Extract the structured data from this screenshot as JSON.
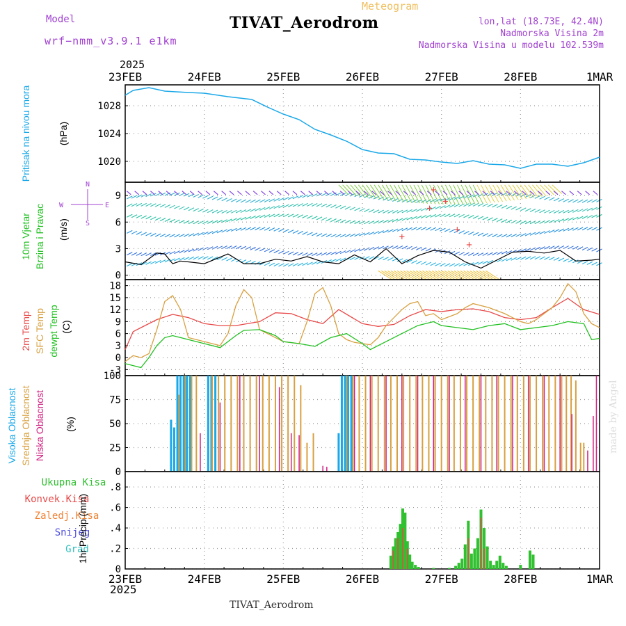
{
  "header": {
    "title": "TIVAT_Aerodrom",
    "subtitle": "Meteogram",
    "model_label": "Model",
    "model_name": "wrf−nmm_v3.9.1  e1km",
    "lonlat": "lon,lat (18.73E, 42.4N)",
    "elevation": "Nadmorska Visina 2m",
    "model_elevation": "Nadmorska Visina u modelu 102.539m",
    "year_top": "2025",
    "year_bottom": "2025",
    "footer": "TIVAT_Aerodrom",
    "watermark": "made by Angel"
  },
  "colors": {
    "pressure": "#1aa8e8",
    "temp2m": "#e84848",
    "sfc": "#d8a040",
    "dewpt": "#20c020",
    "high_cloud": "#1aa8e8",
    "mid_cloud": "#d8a040",
    "low_cloud": "#d02080",
    "precip_total": "#30c030",
    "precip_conv": "#e84848",
    "purple": "#a040d0"
  },
  "chart_data": [
    {
      "type": "line",
      "panel": "pressure",
      "ylabel_main": "Pritisak na nivou mora",
      "ylabel_unit": "(hPa)",
      "x_labels": [
        "23FEB",
        "24FEB",
        "25FEB",
        "26FEB",
        "27FEB",
        "28FEB",
        "1MAR"
      ],
      "ylim": [
        1017,
        1031
      ],
      "yticks": [
        1020,
        1024,
        1028
      ],
      "series": [
        {
          "x": [
            0,
            0.1,
            0.3,
            0.5,
            0.8,
            1.0,
            1.3,
            1.6,
            1.8,
            2.0,
            2.2,
            2.4,
            2.6,
            2.8,
            3.0,
            3.2,
            3.4,
            3.6,
            3.8,
            4.0,
            4.2,
            4.4,
            4.6,
            4.8,
            5.0,
            5.2,
            5.4,
            5.6,
            5.8,
            6.0
          ],
          "y": [
            1029.5,
            1030.2,
            1030.6,
            1030.1,
            1029.9,
            1029.8,
            1029.3,
            1028.9,
            1027.8,
            1026.8,
            1026.0,
            1024.6,
            1023.8,
            1022.9,
            1021.7,
            1021.2,
            1021.1,
            1020.3,
            1020.2,
            1019.9,
            1019.7,
            1020.1,
            1019.6,
            1019.5,
            1019.0,
            1019.6,
            1019.6,
            1019.3,
            1019.8,
            1020.6
          ]
        }
      ]
    },
    {
      "type": "line",
      "panel": "wind",
      "ylabel_main": "10m Vjetar",
      "ylabel_sub": "Brzina i Pravac",
      "ylabel_unit": "(m/s)",
      "compass": [
        "N",
        "E",
        "S",
        "W"
      ],
      "ylim": [
        -0.5,
        10.5
      ],
      "yticks": [
        0,
        3,
        6,
        9
      ],
      "series": [
        {
          "x": [
            0,
            0.2,
            0.4,
            0.5,
            0.6,
            0.7,
            0.8,
            1.0,
            1.3,
            1.5,
            1.7,
            1.9,
            2.1,
            2.3,
            2.5,
            2.7,
            2.9,
            3.1,
            3.3,
            3.5,
            3.7,
            3.9,
            4.1,
            4.3,
            4.5,
            4.7,
            4.9,
            5.1,
            5.3,
            5.5,
            5.7,
            5.9,
            6.0
          ],
          "y": [
            1.5,
            1.2,
            2.5,
            2.4,
            1.3,
            1.6,
            1.5,
            1.3,
            2.4,
            1.3,
            1.3,
            1.8,
            1.6,
            2.1,
            1.5,
            1.3,
            2.3,
            1.5,
            3.0,
            1.3,
            2.2,
            2.8,
            2.6,
            1.5,
            0.8,
            1.7,
            2.6,
            2.7,
            2.5,
            2.8,
            1.6,
            1.7,
            1.8
          ]
        }
      ],
      "gust_markers": [
        {
          "x": 3.9,
          "y": 9.6
        },
        {
          "x": 3.85,
          "y": 7.5
        },
        {
          "x": 4.05,
          "y": 8.3
        },
        {
          "x": 4.2,
          "y": 5.1
        },
        {
          "x": 3.5,
          "y": 4.3
        },
        {
          "x": 4.35,
          "y": 3.4
        }
      ]
    },
    {
      "type": "line",
      "panel": "temperature",
      "ylabel_a": "2m Temp",
      "ylabel_b": "SFC Temp",
      "ylabel_c": "dewpt Temp",
      "ylabel_unit": "(C)",
      "ylim": [
        -4.5,
        19.5
      ],
      "yticks": [
        -3,
        0,
        3,
        6,
        9,
        12,
        15,
        18
      ],
      "series": [
        {
          "name": "2m Temp",
          "x": [
            0,
            0.1,
            0.2,
            0.4,
            0.6,
            0.8,
            1.0,
            1.2,
            1.4,
            1.7,
            1.9,
            2.1,
            2.3,
            2.5,
            2.7,
            3.0,
            3.2,
            3.4,
            3.6,
            3.8,
            4.0,
            4.2,
            4.4,
            4.6,
            4.8,
            5.0,
            5.2,
            5.4,
            5.6,
            5.8,
            6.0
          ],
          "y": [
            2.0,
            6.5,
            7.5,
            9.5,
            10.8,
            10.0,
            8.5,
            8.0,
            8.0,
            9.0,
            11.2,
            11.0,
            9.5,
            8.5,
            12.0,
            8.5,
            7.8,
            8.3,
            10.5,
            12.0,
            11.5,
            12.0,
            12.2,
            11.5,
            10.0,
            9.5,
            10.0,
            12.5,
            14.8,
            12.0,
            10.8
          ]
        },
        {
          "name": "SFC Temp",
          "x": [
            0,
            0.1,
            0.2,
            0.3,
            0.4,
            0.5,
            0.6,
            0.7,
            0.8,
            0.9,
            1.0,
            1.2,
            1.3,
            1.4,
            1.5,
            1.6,
            1.7,
            1.9,
            2.0,
            2.2,
            2.3,
            2.4,
            2.5,
            2.6,
            2.7,
            2.8,
            2.9,
            3.1,
            3.2,
            3.3,
            3.4,
            3.5,
            3.6,
            3.7,
            3.8,
            3.9,
            4.0,
            4.2,
            4.3,
            4.4,
            4.6,
            4.8,
            5.0,
            5.1,
            5.2,
            5.3,
            5.4,
            5.5,
            5.6,
            5.7,
            5.8,
            5.9,
            6.0
          ],
          "y": [
            -1.0,
            0.5,
            0.0,
            1.0,
            7.0,
            14.0,
            15.5,
            12.0,
            5.0,
            4.5,
            4.0,
            3.0,
            6.0,
            13.0,
            17.0,
            15.0,
            7.0,
            5.0,
            4.0,
            3.5,
            9.0,
            16.0,
            17.5,
            13.0,
            6.0,
            4.5,
            3.8,
            3.2,
            5.0,
            8.0,
            10.0,
            12.0,
            13.5,
            14.0,
            10.5,
            11.0,
            9.5,
            11.0,
            12.5,
            13.5,
            12.5,
            11.0,
            9.0,
            8.5,
            9.5,
            11.0,
            12.5,
            15.0,
            18.5,
            16.5,
            11.0,
            8.5,
            7.5
          ]
        },
        {
          "name": "dewpt Temp",
          "x": [
            0,
            0.1,
            0.2,
            0.3,
            0.4,
            0.5,
            0.6,
            0.8,
            1.0,
            1.2,
            1.4,
            1.5,
            1.7,
            1.9,
            2.0,
            2.2,
            2.4,
            2.6,
            2.8,
            3.0,
            3.1,
            3.3,
            3.5,
            3.7,
            3.9,
            4.0,
            4.2,
            4.4,
            4.6,
            4.8,
            5.0,
            5.2,
            5.4,
            5.6,
            5.8,
            5.9,
            6.0
          ],
          "y": [
            -1.5,
            -2.0,
            -2.5,
            0.0,
            3.0,
            5.0,
            5.5,
            4.5,
            3.5,
            2.5,
            5.5,
            6.8,
            7.0,
            5.5,
            4.0,
            3.5,
            2.8,
            5.0,
            6.0,
            3.5,
            2.0,
            4.0,
            6.0,
            8.0,
            9.0,
            8.0,
            7.5,
            7.0,
            8.0,
            8.5,
            7.0,
            7.5,
            8.0,
            9.0,
            8.5,
            4.5,
            4.8
          ]
        }
      ]
    },
    {
      "type": "bar",
      "panel": "clouds",
      "ylabel_a": "Visoka Oblacnost",
      "ylabel_b": "Srednja Oblacnost",
      "ylabel_c": "Niska Oblacnost",
      "ylabel_unit": "(%)",
      "ylim": [
        0,
        100
      ],
      "yticks": [
        0,
        25,
        50,
        75,
        100
      ],
      "high_cloud": [
        {
          "x": 0.58,
          "v": 54
        },
        {
          "x": 0.62,
          "v": 46
        },
        {
          "x": 0.66,
          "v": 100
        },
        {
          "x": 0.7,
          "v": 100
        },
        {
          "x": 0.74,
          "v": 100
        },
        {
          "x": 0.78,
          "v": 100
        },
        {
          "x": 0.82,
          "v": 100
        },
        {
          "x": 1.05,
          "v": 100
        },
        {
          "x": 1.09,
          "v": 100
        },
        {
          "x": 1.14,
          "v": 100
        },
        {
          "x": 2.7,
          "v": 40
        },
        {
          "x": 2.74,
          "v": 100
        },
        {
          "x": 2.78,
          "v": 100
        },
        {
          "x": 2.82,
          "v": 100
        },
        {
          "x": 2.86,
          "v": 100
        }
      ],
      "mid_cloud": [
        {
          "x": 0.68,
          "v": 80
        },
        {
          "x": 0.76,
          "v": 100
        },
        {
          "x": 0.84,
          "v": 100
        },
        {
          "x": 0.9,
          "v": 100
        },
        {
          "x": 1.1,
          "v": 100
        },
        {
          "x": 1.18,
          "v": 100
        },
        {
          "x": 1.26,
          "v": 100
        },
        {
          "x": 1.34,
          "v": 100
        },
        {
          "x": 1.42,
          "v": 100
        },
        {
          "x": 1.5,
          "v": 100
        },
        {
          "x": 1.58,
          "v": 100
        },
        {
          "x": 1.66,
          "v": 100
        },
        {
          "x": 1.74,
          "v": 100
        },
        {
          "x": 1.82,
          "v": 100
        },
        {
          "x": 1.9,
          "v": 100
        },
        {
          "x": 1.98,
          "v": 100
        },
        {
          "x": 2.06,
          "v": 100
        },
        {
          "x": 2.14,
          "v": 100
        },
        {
          "x": 2.22,
          "v": 90
        },
        {
          "x": 2.3,
          "v": 30
        },
        {
          "x": 2.38,
          "v": 40
        },
        {
          "x": 2.8,
          "v": 100
        },
        {
          "x": 2.88,
          "v": 100
        },
        {
          "x": 2.96,
          "v": 100
        },
        {
          "x": 3.04,
          "v": 100
        },
        {
          "x": 3.12,
          "v": 100
        },
        {
          "x": 3.2,
          "v": 100
        },
        {
          "x": 3.28,
          "v": 100
        },
        {
          "x": 3.36,
          "v": 100
        },
        {
          "x": 3.44,
          "v": 100
        },
        {
          "x": 3.52,
          "v": 100
        },
        {
          "x": 3.6,
          "v": 100
        },
        {
          "x": 3.68,
          "v": 100
        },
        {
          "x": 3.76,
          "v": 100
        },
        {
          "x": 3.84,
          "v": 100
        },
        {
          "x": 3.92,
          "v": 100
        },
        {
          "x": 4.0,
          "v": 100
        },
        {
          "x": 4.08,
          "v": 100
        },
        {
          "x": 4.16,
          "v": 100
        },
        {
          "x": 4.24,
          "v": 100
        },
        {
          "x": 4.32,
          "v": 100
        },
        {
          "x": 4.4,
          "v": 100
        },
        {
          "x": 4.48,
          "v": 100
        },
        {
          "x": 4.56,
          "v": 100
        },
        {
          "x": 4.64,
          "v": 100
        },
        {
          "x": 4.72,
          "v": 100
        },
        {
          "x": 4.8,
          "v": 100
        },
        {
          "x": 4.88,
          "v": 100
        },
        {
          "x": 4.96,
          "v": 100
        },
        {
          "x": 5.04,
          "v": 100
        },
        {
          "x": 5.12,
          "v": 100
        },
        {
          "x": 5.2,
          "v": 100
        },
        {
          "x": 5.28,
          "v": 100
        },
        {
          "x": 5.36,
          "v": 100
        },
        {
          "x": 5.44,
          "v": 100
        },
        {
          "x": 5.52,
          "v": 100
        },
        {
          "x": 5.58,
          "v": 100
        },
        {
          "x": 5.64,
          "v": 100
        },
        {
          "x": 5.7,
          "v": 95
        },
        {
          "x": 5.76,
          "v": 30
        },
        {
          "x": 5.8,
          "v": 30
        }
      ],
      "low_cloud": [
        {
          "x": 0.95,
          "v": 40
        },
        {
          "x": 1.2,
          "v": 72
        },
        {
          "x": 1.45,
          "v": 100
        },
        {
          "x": 1.7,
          "v": 100
        },
        {
          "x": 1.95,
          "v": 88
        },
        {
          "x": 2.1,
          "v": 40
        },
        {
          "x": 2.2,
          "v": 38
        },
        {
          "x": 2.5,
          "v": 6
        },
        {
          "x": 2.55,
          "v": 5
        },
        {
          "x": 2.9,
          "v": 100
        },
        {
          "x": 3.1,
          "v": 100
        },
        {
          "x": 3.3,
          "v": 100
        },
        {
          "x": 3.5,
          "v": 100
        },
        {
          "x": 3.7,
          "v": 100
        },
        {
          "x": 3.9,
          "v": 100
        },
        {
          "x": 4.1,
          "v": 100
        },
        {
          "x": 4.3,
          "v": 100
        },
        {
          "x": 4.5,
          "v": 100
        },
        {
          "x": 4.7,
          "v": 100
        },
        {
          "x": 4.9,
          "v": 100
        },
        {
          "x": 5.1,
          "v": 100
        },
        {
          "x": 5.3,
          "v": 100
        },
        {
          "x": 5.5,
          "v": 100
        },
        {
          "x": 5.65,
          "v": 60
        },
        {
          "x": 5.85,
          "v": 22
        },
        {
          "x": 5.92,
          "v": 58
        },
        {
          "x": 5.96,
          "v": 100
        }
      ]
    },
    {
      "type": "bar",
      "panel": "precipitation",
      "legend": [
        "Ukupna Kisa",
        "Konvek.Kisa",
        "Zaledj.Kisa",
        "Snijeg",
        "Grad"
      ],
      "ylabel_unit": "1hr Precip (mm)",
      "ylim": [
        0,
        0.95
      ],
      "yticks": [
        0,
        0.2,
        0.4,
        0.6,
        0.8
      ],
      "total": [
        {
          "x": 3.36,
          "v": 0.13
        },
        {
          "x": 3.39,
          "v": 0.22
        },
        {
          "x": 3.42,
          "v": 0.3
        },
        {
          "x": 3.45,
          "v": 0.36
        },
        {
          "x": 3.48,
          "v": 0.44
        },
        {
          "x": 3.51,
          "v": 0.59
        },
        {
          "x": 3.54,
          "v": 0.55
        },
        {
          "x": 3.57,
          "v": 0.27
        },
        {
          "x": 3.6,
          "v": 0.14
        },
        {
          "x": 3.63,
          "v": 0.07
        },
        {
          "x": 3.67,
          "v": 0.04
        },
        {
          "x": 3.71,
          "v": 0.02
        },
        {
          "x": 3.9,
          "v": 0.01
        },
        {
          "x": 4.1,
          "v": 0.01
        },
        {
          "x": 4.18,
          "v": 0.03
        },
        {
          "x": 4.22,
          "v": 0.06
        },
        {
          "x": 4.26,
          "v": 0.1
        },
        {
          "x": 4.3,
          "v": 0.24
        },
        {
          "x": 4.34,
          "v": 0.47
        },
        {
          "x": 4.38,
          "v": 0.15
        },
        {
          "x": 4.42,
          "v": 0.2
        },
        {
          "x": 4.46,
          "v": 0.3
        },
        {
          "x": 4.5,
          "v": 0.58
        },
        {
          "x": 4.54,
          "v": 0.4
        },
        {
          "x": 4.58,
          "v": 0.22
        },
        {
          "x": 4.62,
          "v": 0.08
        },
        {
          "x": 4.66,
          "v": 0.04
        },
        {
          "x": 4.7,
          "v": 0.08
        },
        {
          "x": 4.74,
          "v": 0.13
        },
        {
          "x": 4.78,
          "v": 0.06
        },
        {
          "x": 4.82,
          "v": 0.03
        },
        {
          "x": 5.0,
          "v": 0.04
        },
        {
          "x": 5.12,
          "v": 0.18
        },
        {
          "x": 5.16,
          "v": 0.14
        }
      ],
      "convective": [
        {
          "x": 3.39,
          "v": 0.18
        },
        {
          "x": 3.45,
          "v": 0.3
        },
        {
          "x": 3.51,
          "v": 0.4
        },
        {
          "x": 3.57,
          "v": 0.2
        },
        {
          "x": 4.34,
          "v": 0.3
        },
        {
          "x": 4.5,
          "v": 0.5
        },
        {
          "x": 4.54,
          "v": 0.2
        }
      ]
    }
  ]
}
